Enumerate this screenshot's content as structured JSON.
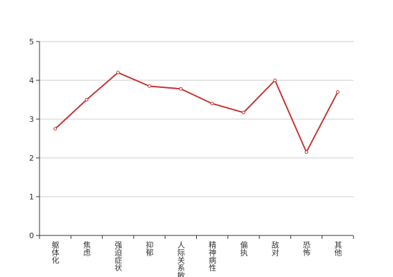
{
  "chart_data": {
    "type": "line",
    "categories": [
      "躯体化",
      "焦虑",
      "强迫症状",
      "抑郁",
      "人际关系敏感",
      "精神病性",
      "偏执",
      "敌对",
      "恐怖",
      "其他"
    ],
    "values": [
      2.75,
      3.5,
      4.2,
      3.85,
      3.78,
      3.4,
      3.17,
      4.0,
      2.15,
      3.7
    ],
    "color": "#c23531",
    "ylim": [
      0,
      5
    ],
    "yticks": [
      0,
      1,
      2,
      3,
      4,
      5
    ],
    "grid": true
  }
}
